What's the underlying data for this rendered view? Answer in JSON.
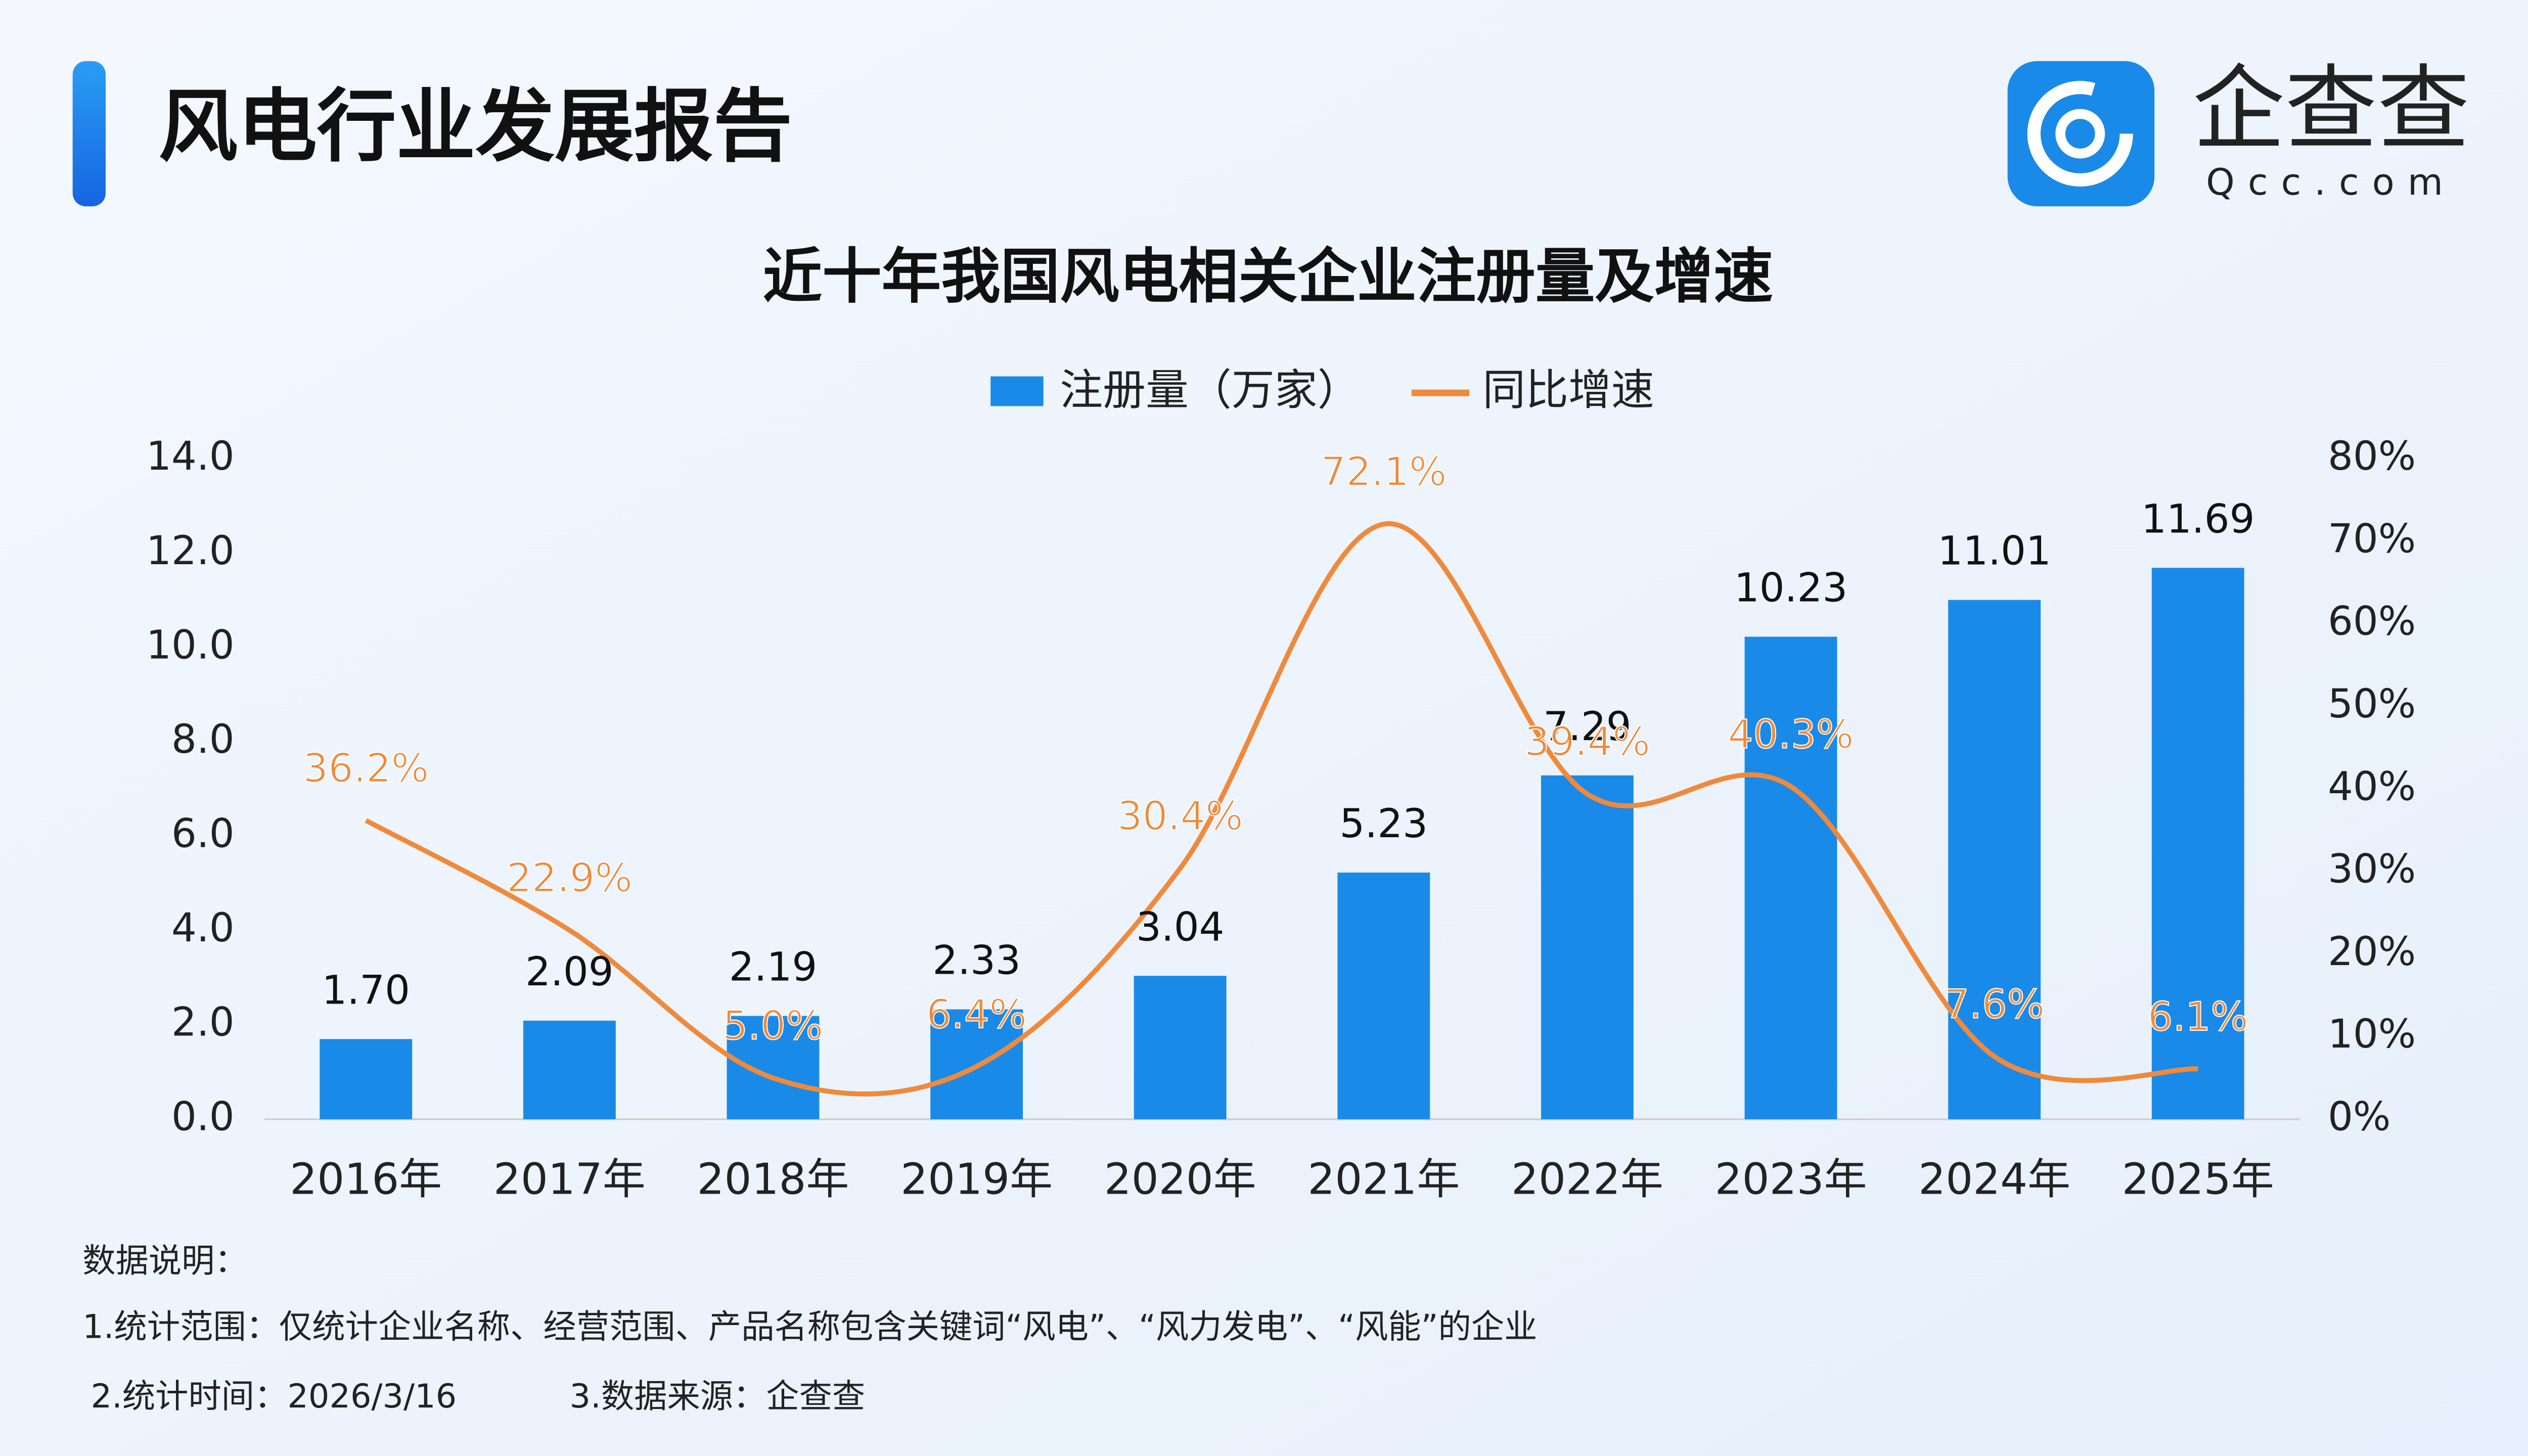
{
  "header": {
    "title": "风电行业发展报告",
    "logo_name": "企查查",
    "logo_domain": "Qcc.com"
  },
  "chart_data": {
    "type": "bar-line",
    "title": "近十年我国风电相关企业注册量及增速",
    "categories": [
      "2016年",
      "2017年",
      "2018年",
      "2019年",
      "2020年",
      "2021年",
      "2022年",
      "2023年",
      "2024年",
      "2025年"
    ],
    "series": [
      {
        "name": "注册量（万家）",
        "type": "bar",
        "color": "#1a8ae8",
        "values": [
          1.7,
          2.09,
          2.19,
          2.33,
          3.04,
          5.23,
          7.29,
          10.23,
          11.01,
          11.69
        ],
        "value_labels": [
          "1.70",
          "2.09",
          "2.19",
          "2.33",
          "3.04",
          "5.23",
          "7.29",
          "10.23",
          "11.01",
          "11.69"
        ]
      },
      {
        "name": "同比增速",
        "type": "line",
        "axis": "y2",
        "color": "#ef8a3c",
        "values": [
          36.2,
          22.9,
          5.0,
          6.4,
          30.4,
          72.1,
          39.4,
          40.3,
          7.6,
          6.1
        ],
        "value_labels": [
          "36.2%",
          "22.9%",
          "5.0%",
          "6.4%",
          "30.4%",
          "72.1%",
          "39.4%",
          "40.3%",
          "7.6%",
          "6.1%"
        ]
      }
    ],
    "ylim": [
      0,
      14
    ],
    "yticks": [
      {
        "value": 0,
        "label": "0.0"
      },
      {
        "value": 2,
        "label": "2.0"
      },
      {
        "value": 4,
        "label": "4.0"
      },
      {
        "value": 6,
        "label": "6.0"
      },
      {
        "value": 8,
        "label": "8.0"
      },
      {
        "value": 10,
        "label": "10.0"
      },
      {
        "value": 12,
        "label": "12.0"
      },
      {
        "value": 14,
        "label": "14.0"
      }
    ],
    "y2lim": [
      0,
      80
    ],
    "y2ticks": [
      {
        "value": 0,
        "label": "0%"
      },
      {
        "value": 10,
        "label": "10%"
      },
      {
        "value": 20,
        "label": "20%"
      },
      {
        "value": 30,
        "label": "30%"
      },
      {
        "value": 40,
        "label": "40%"
      },
      {
        "value": 50,
        "label": "50%"
      },
      {
        "value": 60,
        "label": "60%"
      },
      {
        "value": 70,
        "label": "70%"
      },
      {
        "value": 80,
        "label": "80%"
      }
    ],
    "legend": "top"
  },
  "notes": [
    "数据说明：",
    "1.统计范围：仅统计企业名称、经营范围、产品名称包含关键词“风电”、“风力发电”、“风能”的企业",
    "2.统计时间：2026/3/16",
    "3.数据来源：企查查"
  ]
}
